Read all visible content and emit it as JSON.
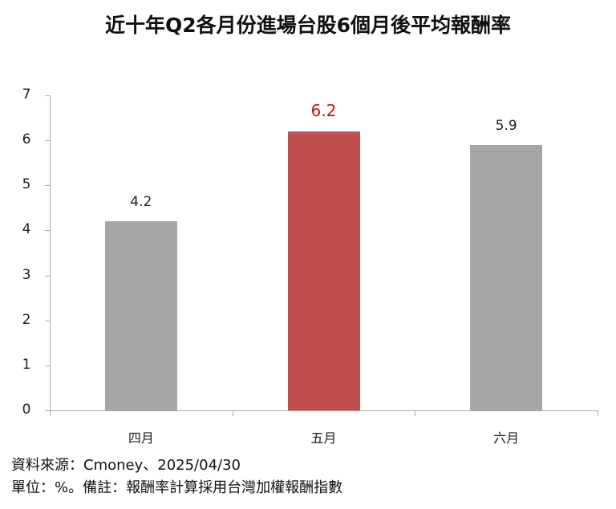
{
  "title": "近十年Q2各月份進場台股6個月後平均報酬率",
  "chart_data": {
    "type": "bar",
    "title": "近十年Q2各月份進場台股6個月後平均報酬率",
    "categories": [
      "四月",
      "五月",
      "六月"
    ],
    "values": [
      4.2,
      6.2,
      5.9
    ],
    "value_labels": [
      "4.2",
      "6.2",
      "5.9"
    ],
    "highlight_index": 1,
    "colors": {
      "default": "#a6a6a6",
      "highlight": "#c0504d",
      "highlight_label": "#c0121c"
    },
    "xlabel": "",
    "ylabel": "",
    "ylim": [
      0,
      7
    ],
    "yticks": [
      "0",
      "1",
      "2",
      "3",
      "4",
      "5",
      "6",
      "7"
    ],
    "grid": false,
    "legend": null
  },
  "footer": {
    "source": "資料來源：Cmoney、2025/04/30",
    "note": "單位：%。備註：報酬率計算採用台灣加權報酬指數"
  }
}
